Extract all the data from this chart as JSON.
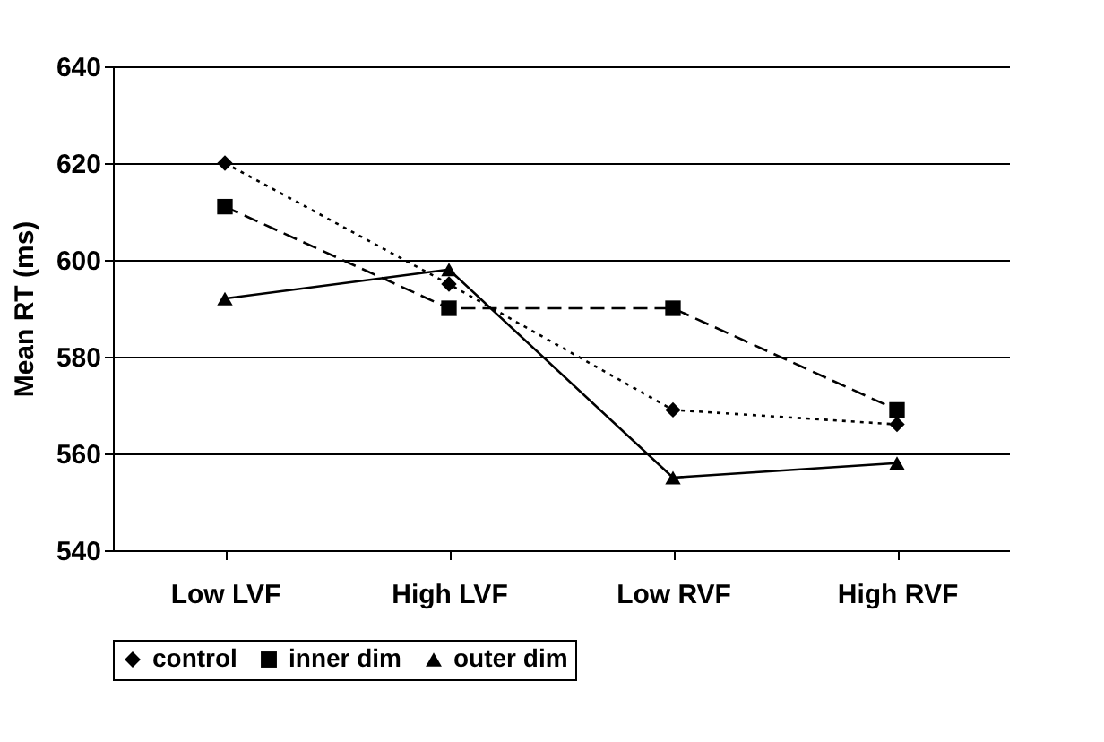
{
  "chart_data": {
    "type": "line",
    "ylabel": "Mean RT (ms)",
    "categories": [
      "Low LVF",
      "High LVF",
      "Low RVF",
      "High RVF"
    ],
    "series": [
      {
        "name": "control",
        "color": "#000000",
        "marker": "diamond",
        "line_style": "dotted",
        "values": [
          620,
          595,
          569,
          566
        ]
      },
      {
        "name": "inner dim",
        "color": "#000000",
        "marker": "square",
        "line_style": "dashed",
        "values": [
          611,
          590,
          590,
          569
        ]
      },
      {
        "name": "outer dim",
        "color": "#000000",
        "marker": "triangle",
        "line_style": "solid",
        "values": [
          592,
          598,
          555,
          558
        ]
      }
    ],
    "ylim": [
      540,
      640
    ],
    "yticks": [
      540,
      560,
      580,
      600,
      620,
      640
    ],
    "grid": "y",
    "legend": "bottom"
  }
}
